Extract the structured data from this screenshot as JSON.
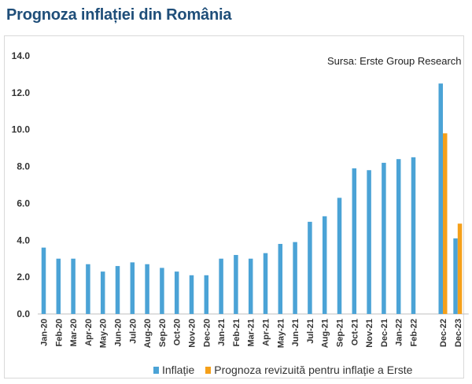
{
  "page": {
    "title": "Prognoza inflației din România",
    "source": "Sursa: Erste Group Research"
  },
  "chart_data": {
    "type": "bar",
    "categories": [
      "Jan-20",
      "Feb-20",
      "Mar-20",
      "Apr-20",
      "May-20",
      "Jun-20",
      "Jul-20",
      "Aug-20",
      "Sep-20",
      "Oct-20",
      "Nov-20",
      "Dec-20",
      "Jan-21",
      "Feb-21",
      "Mar-21",
      "Apr-21",
      "May-21",
      "Jun-21",
      "Jul-21",
      "Aug-21",
      "Sep-21",
      "Oct-21",
      "Nov-21",
      "Dec-21",
      "Jan-22",
      "Feb-22",
      "Dec-22",
      "Dec-23"
    ],
    "gap_after_index": 25,
    "series": [
      {
        "name": "Inflație",
        "color": "#4ba3d6",
        "values": [
          3.6,
          3.0,
          3.0,
          2.7,
          2.3,
          2.6,
          2.8,
          2.7,
          2.5,
          2.3,
          2.1,
          2.1,
          3.0,
          3.2,
          3.0,
          3.3,
          3.8,
          3.9,
          5.0,
          5.3,
          6.3,
          7.9,
          7.8,
          8.2,
          8.4,
          8.5,
          12.5,
          4.1
        ]
      },
      {
        "name": "Prognoza revizuită pentru inflație a Erste",
        "color": "#f5a01a",
        "values": [
          null,
          null,
          null,
          null,
          null,
          null,
          null,
          null,
          null,
          null,
          null,
          null,
          null,
          null,
          null,
          null,
          null,
          null,
          null,
          null,
          null,
          null,
          null,
          null,
          null,
          null,
          9.8,
          4.9
        ]
      }
    ],
    "yticks": [
      "0.0",
      "2.0",
      "4.0",
      "6.0",
      "8.0",
      "10.0",
      "12.0",
      "14.0"
    ],
    "ylim": [
      0,
      14
    ],
    "grid": false,
    "legend": "bottom"
  }
}
